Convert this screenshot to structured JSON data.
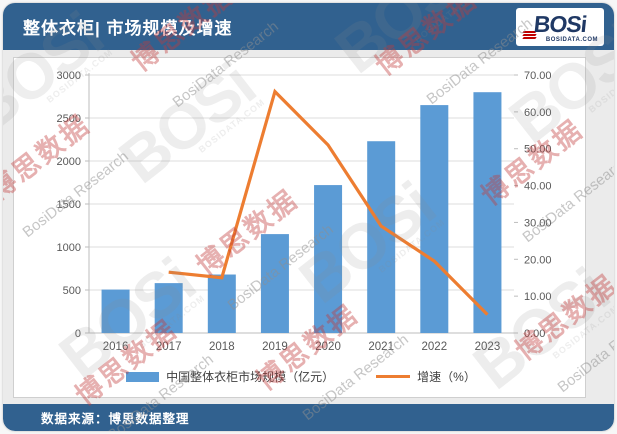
{
  "header": {
    "title": "整体衣柜| 市场规模及增速",
    "logo": {
      "text": "BOSi",
      "subtext": "BOSIDATA.COM"
    }
  },
  "footer": {
    "source_label": "数据来源：博思数据整理"
  },
  "watermark": {
    "cn": "博思数据",
    "en": "BosiData Research",
    "logo": "BOSi",
    "logo_sub": "BOSIDATA.COM"
  },
  "colors": {
    "band_blue": "#31618F",
    "bar_blue": "#5B9BD5",
    "line_orange": "#ED7D31",
    "grid_gray": "#dcdcdc",
    "axis_line_gray": "#bdbdbd",
    "axis_text_gray": "#595959",
    "logo_navy": "#1F3864",
    "logo_red": "#C00000",
    "watermark_red": "#C23B3B",
    "watermark_gray": "#8f8f8f"
  },
  "chart_data": {
    "type": "bar",
    "subtype": "bar-line-combo",
    "categories": [
      "2016",
      "2017",
      "2018",
      "2019",
      "2020",
      "2021",
      "2022",
      "2023"
    ],
    "series": [
      {
        "name": "中国整体衣柜市场规模（亿元）",
        "type": "bar",
        "axis": "left",
        "values": [
          505,
          580,
          680,
          1150,
          1720,
          2230,
          2650,
          2800
        ]
      },
      {
        "name": "增速（%）",
        "type": "line",
        "axis": "right",
        "values": [
          null,
          16.5,
          15.0,
          65.5,
          51.0,
          29.0,
          19.5,
          5.0
        ]
      }
    ],
    "left_axis": {
      "min": 0,
      "max": 3000,
      "step": 500,
      "ticks": [
        "0",
        "500",
        "1000",
        "1500",
        "2000",
        "2500",
        "3000"
      ]
    },
    "right_axis": {
      "min": 0,
      "max": 70,
      "step": 10,
      "ticks": [
        "0.00",
        "10.00",
        "20.00",
        "30.00",
        "40.00",
        "50.00",
        "60.00",
        "70.00"
      ]
    },
    "legend": [
      "中国整体衣柜市场规模（亿元）",
      "增速（%）"
    ],
    "title": "",
    "xlabel": "",
    "ylabel": "",
    "grid": "horizontal",
    "legend_position": "bottom"
  }
}
